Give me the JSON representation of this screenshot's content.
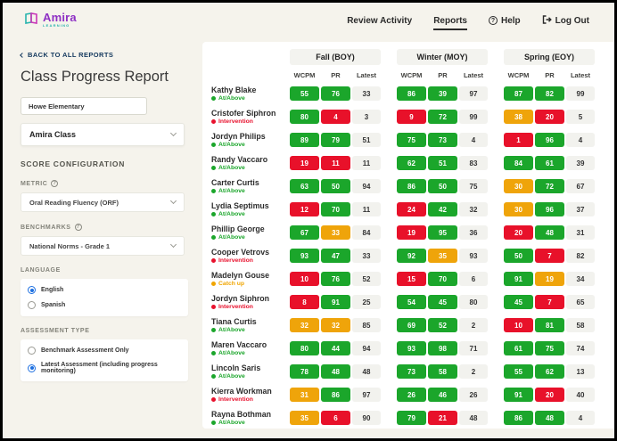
{
  "icons": {
    "question": "?"
  },
  "header": {
    "logo": {
      "brand": "Amira",
      "sub": "LEARNING"
    },
    "nav": [
      {
        "label": "Review Activity",
        "active": false
      },
      {
        "label": "Reports",
        "active": true
      },
      {
        "label": "Help",
        "icon": "help-icon"
      },
      {
        "label": "Log Out",
        "icon": "logout-icon"
      }
    ]
  },
  "sidebar": {
    "back_link": "BACK TO ALL REPORTS",
    "title": "Class Progress Report",
    "school": "Howe Elementary",
    "class_select": "Amira Class",
    "score_configuration_label": "SCORE CONFIGURATION",
    "metric_label": "METRIC",
    "metric_value": "Oral Reading Fluency (ORF)",
    "benchmarks_label": "BENCHMARKS",
    "benchmarks_value": "National Norms - Grade 1",
    "language_label": "LANGUAGE",
    "language_options": [
      {
        "label": "English",
        "selected": true
      },
      {
        "label": "Spanish",
        "selected": false
      }
    ],
    "assessment_type_label": "ASSESSMENT TYPE",
    "assessment_options": [
      {
        "label": "Benchmark Assessment Only",
        "selected": false
      },
      {
        "label": "Latest Assessment (including progress monitoring)",
        "selected": true
      }
    ]
  },
  "report": {
    "periods": [
      "Fall (BOY)",
      "Winter (MOY)",
      "Spring (EOY)"
    ],
    "subheaders": [
      "WCPM",
      "PR",
      "Latest"
    ],
    "badge_colors": {
      "g": "#1BA62B",
      "r": "#E8112A",
      "o": "#EFA40A"
    },
    "statuses": {
      "at-above": {
        "label": "At/Above",
        "color": "#1BA62B"
      },
      "intervention": {
        "label": "Intervention",
        "color": "#E8112D"
      },
      "catch-up": {
        "label": "Catch up",
        "color": "#F0A500"
      }
    },
    "students": [
      {
        "name": "Kathy Blake",
        "status": "at-above",
        "cells": [
          [
            "55",
            "g"
          ],
          [
            "76",
            "g"
          ],
          [
            "33",
            "l"
          ],
          [
            "86",
            "g"
          ],
          [
            "39",
            "g"
          ],
          [
            "97",
            "l"
          ],
          [
            "87",
            "g"
          ],
          [
            "82",
            "g"
          ],
          [
            "99",
            "l"
          ]
        ]
      },
      {
        "name": "Cristofer Siphron",
        "status": "intervention",
        "cells": [
          [
            "80",
            "g"
          ],
          [
            "4",
            "r"
          ],
          [
            "3",
            "l"
          ],
          [
            "9",
            "r"
          ],
          [
            "72",
            "g"
          ],
          [
            "99",
            "l"
          ],
          [
            "38",
            "o"
          ],
          [
            "20",
            "r"
          ],
          [
            "5",
            "l"
          ]
        ]
      },
      {
        "name": "Jordyn Philips",
        "status": "at-above",
        "cells": [
          [
            "89",
            "g"
          ],
          [
            "79",
            "g"
          ],
          [
            "51",
            "l"
          ],
          [
            "75",
            "g"
          ],
          [
            "73",
            "g"
          ],
          [
            "4",
            "l"
          ],
          [
            "1",
            "r"
          ],
          [
            "96",
            "g"
          ],
          [
            "4",
            "l"
          ]
        ]
      },
      {
        "name": "Randy Vaccaro",
        "status": "at-above",
        "cells": [
          [
            "19",
            "r"
          ],
          [
            "11",
            "r"
          ],
          [
            "11",
            "l"
          ],
          [
            "62",
            "g"
          ],
          [
            "51",
            "g"
          ],
          [
            "83",
            "l"
          ],
          [
            "84",
            "g"
          ],
          [
            "61",
            "g"
          ],
          [
            "39",
            "l"
          ]
        ]
      },
      {
        "name": "Carter Curtis",
        "status": "at-above",
        "cells": [
          [
            "63",
            "g"
          ],
          [
            "50",
            "g"
          ],
          [
            "94",
            "l"
          ],
          [
            "86",
            "g"
          ],
          [
            "50",
            "g"
          ],
          [
            "75",
            "l"
          ],
          [
            "30",
            "o"
          ],
          [
            "72",
            "g"
          ],
          [
            "67",
            "l"
          ]
        ]
      },
      {
        "name": "Lydia Septimus",
        "status": "at-above",
        "cells": [
          [
            "12",
            "r"
          ],
          [
            "70",
            "g"
          ],
          [
            "11",
            "l"
          ],
          [
            "24",
            "r"
          ],
          [
            "42",
            "g"
          ],
          [
            "32",
            "l"
          ],
          [
            "30",
            "o"
          ],
          [
            "96",
            "g"
          ],
          [
            "37",
            "l"
          ]
        ]
      },
      {
        "name": "Phillip George",
        "status": "at-above",
        "cells": [
          [
            "67",
            "g"
          ],
          [
            "33",
            "o"
          ],
          [
            "84",
            "l"
          ],
          [
            "19",
            "r"
          ],
          [
            "95",
            "g"
          ],
          [
            "36",
            "l"
          ],
          [
            "20",
            "r"
          ],
          [
            "48",
            "g"
          ],
          [
            "31",
            "l"
          ]
        ]
      },
      {
        "name": "Cooper Vetrovs",
        "status": "intervention",
        "cells": [
          [
            "93",
            "g"
          ],
          [
            "47",
            "g"
          ],
          [
            "33",
            "l"
          ],
          [
            "92",
            "g"
          ],
          [
            "35",
            "o"
          ],
          [
            "93",
            "l"
          ],
          [
            "50",
            "g"
          ],
          [
            "7",
            "r"
          ],
          [
            "82",
            "l"
          ]
        ]
      },
      {
        "name": "Madelyn Gouse",
        "status": "catch-up",
        "cells": [
          [
            "10",
            "r"
          ],
          [
            "76",
            "g"
          ],
          [
            "52",
            "l"
          ],
          [
            "15",
            "r"
          ],
          [
            "70",
            "g"
          ],
          [
            "6",
            "l"
          ],
          [
            "91",
            "g"
          ],
          [
            "19",
            "o"
          ],
          [
            "34",
            "l"
          ]
        ]
      },
      {
        "name": "Jordyn Siphron",
        "status": "intervention",
        "cells": [
          [
            "8",
            "r"
          ],
          [
            "91",
            "g"
          ],
          [
            "25",
            "l"
          ],
          [
            "54",
            "g"
          ],
          [
            "45",
            "g"
          ],
          [
            "80",
            "l"
          ],
          [
            "45",
            "g"
          ],
          [
            "7",
            "r"
          ],
          [
            "65",
            "l"
          ]
        ]
      },
      {
        "name": "Tiana Curtis",
        "status": "at-above",
        "cells": [
          [
            "32",
            "o"
          ],
          [
            "32",
            "o"
          ],
          [
            "85",
            "l"
          ],
          [
            "69",
            "g"
          ],
          [
            "52",
            "g"
          ],
          [
            "2",
            "l"
          ],
          [
            "10",
            "r"
          ],
          [
            "81",
            "g"
          ],
          [
            "58",
            "l"
          ]
        ]
      },
      {
        "name": "Maren Vaccaro",
        "status": "at-above",
        "cells": [
          [
            "80",
            "g"
          ],
          [
            "44",
            "g"
          ],
          [
            "94",
            "l"
          ],
          [
            "93",
            "g"
          ],
          [
            "98",
            "g"
          ],
          [
            "71",
            "l"
          ],
          [
            "61",
            "g"
          ],
          [
            "75",
            "g"
          ],
          [
            "74",
            "l"
          ]
        ]
      },
      {
        "name": "Lincoln Saris",
        "status": "at-above",
        "cells": [
          [
            "78",
            "g"
          ],
          [
            "48",
            "g"
          ],
          [
            "48",
            "l"
          ],
          [
            "73",
            "g"
          ],
          [
            "58",
            "g"
          ],
          [
            "2",
            "l"
          ],
          [
            "55",
            "g"
          ],
          [
            "62",
            "g"
          ],
          [
            "13",
            "l"
          ]
        ]
      },
      {
        "name": "Kierra Workman",
        "status": "intervention",
        "cells": [
          [
            "31",
            "o"
          ],
          [
            "86",
            "g"
          ],
          [
            "97",
            "l"
          ],
          [
            "26",
            "g"
          ],
          [
            "46",
            "g"
          ],
          [
            "26",
            "l"
          ],
          [
            "91",
            "g"
          ],
          [
            "20",
            "r"
          ],
          [
            "40",
            "l"
          ]
        ]
      },
      {
        "name": "Rayna Bothman",
        "status": "at-above",
        "cells": [
          [
            "35",
            "o"
          ],
          [
            "6",
            "r"
          ],
          [
            "90",
            "l"
          ],
          [
            "79",
            "g"
          ],
          [
            "21",
            "r"
          ],
          [
            "48",
            "l"
          ],
          [
            "86",
            "g"
          ],
          [
            "48",
            "g"
          ],
          [
            "4",
            "l"
          ]
        ]
      }
    ]
  }
}
